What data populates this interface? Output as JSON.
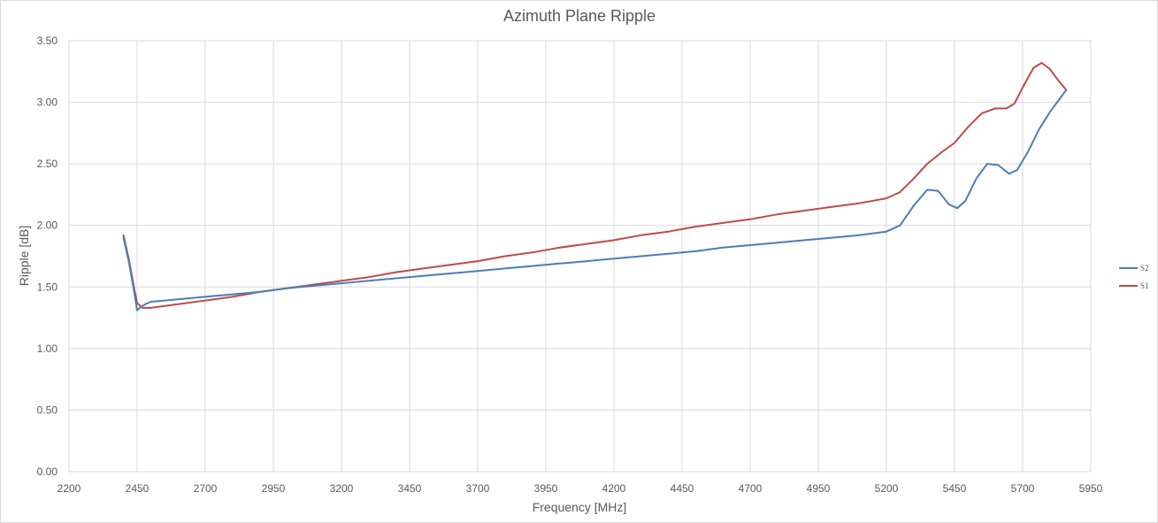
{
  "chart_data": {
    "type": "line",
    "title": "Azimuth Plane Ripple",
    "xlabel": "Frequency [MHz]",
    "ylabel": "Ripple [dB]",
    "xlim": [
      2200,
      5950
    ],
    "ylim": [
      0,
      3.5
    ],
    "x_ticks": [
      "2200",
      "2450",
      "2700",
      "2950",
      "3200",
      "3450",
      "3700",
      "3950",
      "4200",
      "4450",
      "4700",
      "4950",
      "5200",
      "5450",
      "5700",
      "5950"
    ],
    "y_ticks": [
      "0.00",
      "0.50",
      "1.00",
      "1.50",
      "2.00",
      "2.50",
      "3.00",
      "3.50"
    ],
    "grid": true,
    "legend_position": "right",
    "series": [
      {
        "name": "S2",
        "color": "#4a7ebb",
        "points": [
          [
            2400,
            1.9
          ],
          [
            2420,
            1.7
          ],
          [
            2440,
            1.45
          ],
          [
            2450,
            1.31
          ],
          [
            2460,
            1.33
          ],
          [
            2480,
            1.36
          ],
          [
            2500,
            1.38
          ],
          [
            2600,
            1.4
          ],
          [
            2700,
            1.42
          ],
          [
            2800,
            1.44
          ],
          [
            2900,
            1.46
          ],
          [
            3000,
            1.49
          ],
          [
            3100,
            1.51
          ],
          [
            3200,
            1.53
          ],
          [
            3300,
            1.55
          ],
          [
            3400,
            1.57
          ],
          [
            3500,
            1.59
          ],
          [
            3600,
            1.61
          ],
          [
            3700,
            1.63
          ],
          [
            3800,
            1.65
          ],
          [
            3900,
            1.67
          ],
          [
            4000,
            1.69
          ],
          [
            4100,
            1.71
          ],
          [
            4200,
            1.73
          ],
          [
            4300,
            1.75
          ],
          [
            4400,
            1.77
          ],
          [
            4500,
            1.79
          ],
          [
            4600,
            1.82
          ],
          [
            4700,
            1.84
          ],
          [
            4800,
            1.86
          ],
          [
            4900,
            1.88
          ],
          [
            5000,
            1.9
          ],
          [
            5100,
            1.92
          ],
          [
            5200,
            1.95
          ],
          [
            5250,
            2.0
          ],
          [
            5300,
            2.16
          ],
          [
            5350,
            2.29
          ],
          [
            5390,
            2.28
          ],
          [
            5430,
            2.17
          ],
          [
            5460,
            2.14
          ],
          [
            5490,
            2.2
          ],
          [
            5530,
            2.38
          ],
          [
            5570,
            2.5
          ],
          [
            5610,
            2.49
          ],
          [
            5650,
            2.42
          ],
          [
            5680,
            2.45
          ],
          [
            5720,
            2.6
          ],
          [
            5760,
            2.78
          ],
          [
            5800,
            2.92
          ],
          [
            5840,
            3.04
          ],
          [
            5860,
            3.1
          ]
        ]
      },
      {
        "name": "S1",
        "color": "#be4b48",
        "points": [
          [
            2400,
            1.92
          ],
          [
            2420,
            1.72
          ],
          [
            2440,
            1.48
          ],
          [
            2450,
            1.37
          ],
          [
            2470,
            1.33
          ],
          [
            2500,
            1.33
          ],
          [
            2600,
            1.36
          ],
          [
            2700,
            1.39
          ],
          [
            2800,
            1.42
          ],
          [
            2900,
            1.46
          ],
          [
            3000,
            1.49
          ],
          [
            3100,
            1.52
          ],
          [
            3200,
            1.55
          ],
          [
            3300,
            1.58
          ],
          [
            3400,
            1.62
          ],
          [
            3500,
            1.65
          ],
          [
            3600,
            1.68
          ],
          [
            3700,
            1.71
          ],
          [
            3800,
            1.75
          ],
          [
            3900,
            1.78
          ],
          [
            4000,
            1.82
          ],
          [
            4100,
            1.85
          ],
          [
            4200,
            1.88
          ],
          [
            4300,
            1.92
          ],
          [
            4400,
            1.95
          ],
          [
            4500,
            1.99
          ],
          [
            4600,
            2.02
          ],
          [
            4700,
            2.05
          ],
          [
            4800,
            2.09
          ],
          [
            4900,
            2.12
          ],
          [
            5000,
            2.15
          ],
          [
            5100,
            2.18
          ],
          [
            5200,
            2.22
          ],
          [
            5250,
            2.27
          ],
          [
            5300,
            2.38
          ],
          [
            5350,
            2.5
          ],
          [
            5400,
            2.59
          ],
          [
            5450,
            2.67
          ],
          [
            5500,
            2.8
          ],
          [
            5550,
            2.91
          ],
          [
            5600,
            2.95
          ],
          [
            5640,
            2.95
          ],
          [
            5670,
            2.99
          ],
          [
            5700,
            3.12
          ],
          [
            5740,
            3.28
          ],
          [
            5770,
            3.32
          ],
          [
            5800,
            3.27
          ],
          [
            5830,
            3.18
          ],
          [
            5860,
            3.1
          ]
        ]
      }
    ]
  }
}
